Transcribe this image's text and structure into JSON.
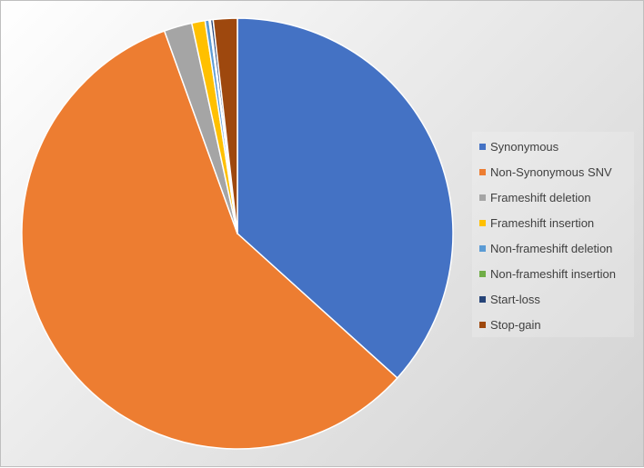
{
  "chart_data": {
    "type": "pie",
    "legend_position": "right",
    "title": "",
    "categories": [
      "Synonymous",
      "Non-Synonymous SNV",
      "Frameshift deletion",
      "Frameshift insertion",
      "Non-frameshift deletion",
      "Non-frameshift insertion",
      "Start-loss",
      "Stop-gain"
    ],
    "values": [
      36.7,
      57.8,
      2.1,
      1.0,
      0.3,
      0.1,
      0.2,
      1.8
    ],
    "colors": [
      "#4472C4",
      "#ED7D31",
      "#A5A5A5",
      "#FFC000",
      "#5B9BD5",
      "#70AD47",
      "#264478",
      "#9E480E"
    ]
  }
}
